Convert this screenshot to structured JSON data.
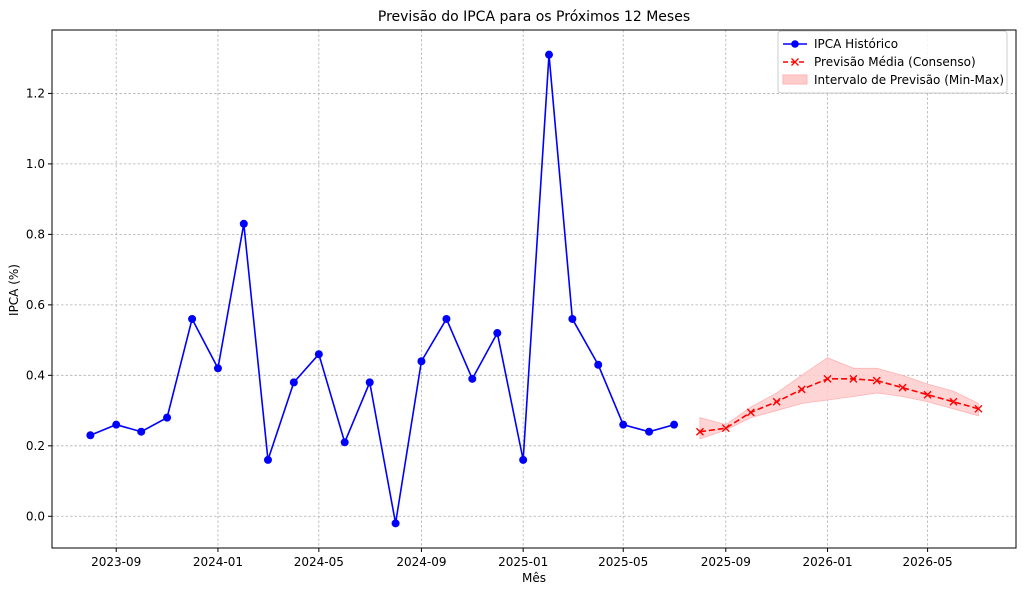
{
  "chart_data": {
    "type": "line",
    "title": "Previsão do IPCA para os Próximos 12 Meses",
    "xlabel": "Mês",
    "ylabel": "IPCA (%)",
    "grid": true,
    "legend_position": "top-right",
    "x_tick_labels": [
      "2023-09",
      "2024-01",
      "2024-05",
      "2024-09",
      "2025-01",
      "2025-05",
      "2025-09",
      "2026-01",
      "2026-05"
    ],
    "y_tick_labels": [
      "0.0",
      "0.2",
      "0.4",
      "0.6",
      "0.8",
      "1.0",
      "1.2"
    ],
    "ylim": [
      -0.09,
      1.38
    ],
    "xlim": [
      "2023-06-16",
      "2026-08-15"
    ],
    "series": [
      {
        "name": "IPCA Histórico",
        "color": "#0000ff",
        "style": "solid-circle",
        "x": [
          "2023-08",
          "2023-09",
          "2023-10",
          "2023-11",
          "2023-12",
          "2024-01",
          "2024-02",
          "2024-03",
          "2024-04",
          "2024-05",
          "2024-06",
          "2024-07",
          "2024-08",
          "2024-09",
          "2024-10",
          "2024-11",
          "2024-12",
          "2025-01",
          "2025-02",
          "2025-03",
          "2025-04",
          "2025-05",
          "2025-06",
          "2025-07"
        ],
        "values": [
          0.23,
          0.26,
          0.24,
          0.28,
          0.56,
          0.42,
          0.83,
          0.16,
          0.38,
          0.46,
          0.21,
          0.38,
          -0.02,
          0.44,
          0.56,
          0.39,
          0.52,
          0.16,
          1.31,
          0.56,
          0.43,
          0.26,
          0.24,
          0.26
        ]
      },
      {
        "name": "Previsão Média (Consenso)",
        "color": "#ff0000",
        "style": "dashed-x",
        "x": [
          "2025-08",
          "2025-09",
          "2025-10",
          "2025-11",
          "2025-12",
          "2026-01",
          "2026-02",
          "2026-03",
          "2026-04",
          "2026-05",
          "2026-06",
          "2026-07"
        ],
        "values": [
          0.24,
          0.25,
          0.295,
          0.325,
          0.36,
          0.39,
          0.39,
          0.385,
          0.365,
          0.345,
          0.325,
          0.305
        ]
      }
    ],
    "band": {
      "name": "Intervalo de Previsão (Min-Max)",
      "color": "#ffcccc",
      "x": [
        "2025-08",
        "2025-09",
        "2025-10",
        "2025-11",
        "2025-12",
        "2026-01",
        "2026-02",
        "2026-03",
        "2026-04",
        "2026-05",
        "2026-06",
        "2026-07"
      ],
      "min": [
        0.22,
        0.245,
        0.28,
        0.3,
        0.32,
        0.33,
        0.34,
        0.35,
        0.34,
        0.325,
        0.305,
        0.285
      ],
      "max": [
        0.28,
        0.26,
        0.31,
        0.35,
        0.4,
        0.45,
        0.42,
        0.42,
        0.4,
        0.375,
        0.355,
        0.32
      ]
    }
  }
}
